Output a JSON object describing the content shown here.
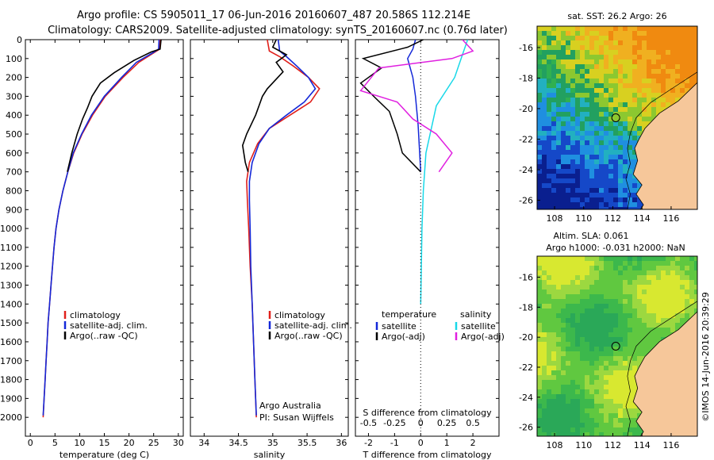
{
  "header": {
    "line1": "Argo profile: CS 5905011_17 06-Jun-2016 20160607_487 20.586S 112.214E",
    "line2": "Climatology: CARS2009. Satellite-adjusted climatology: synTS_20160607.nc (0.76d later)"
  },
  "colors": {
    "clim": "#e0201b",
    "sat": "#1428d8",
    "argo": "#000000",
    "cyan": "#18d8e8",
    "magenta": "#e020e0",
    "land": "#f6c79a"
  },
  "chart_data": [
    {
      "type": "line",
      "name": "temperature-panel",
      "xlabel": "temperature (deg C)",
      "xlim": [
        -1,
        31
      ],
      "ylim": [
        2100,
        0
      ],
      "xticks": [
        "0",
        "5",
        "10",
        "15",
        "20",
        "25",
        "30"
      ],
      "yticks": [
        "0",
        "100",
        "200",
        "300",
        "400",
        "500",
        "600",
        "700",
        "800",
        "900",
        "1000",
        "1100",
        "1200",
        "1300",
        "1400",
        "1500",
        "1600",
        "1700",
        "1800",
        "1900",
        "2000"
      ],
      "legend": [
        "climatology",
        "satellite-adj. clim.",
        "Argo(..raw -QC)"
      ],
      "series": [
        {
          "name": "climatology",
          "points": [
            [
              26.3,
              0
            ],
            [
              26.2,
              50
            ],
            [
              25,
              70
            ],
            [
              22,
              120
            ],
            [
              18.8,
              200
            ],
            [
              15.2,
              300
            ],
            [
              12.6,
              400
            ],
            [
              10.5,
              500
            ],
            [
              8.8,
              600
            ],
            [
              7.6,
              700
            ],
            [
              6.6,
              800
            ],
            [
              5.8,
              900
            ],
            [
              5.2,
              1000
            ],
            [
              4.8,
              1100
            ],
            [
              4.5,
              1200
            ],
            [
              4.2,
              1300
            ],
            [
              3.9,
              1400
            ],
            [
              3.6,
              1500
            ],
            [
              3.4,
              1600
            ],
            [
              3.2,
              1700
            ],
            [
              3.0,
              1800
            ],
            [
              2.8,
              1900
            ],
            [
              2.6,
              2000
            ]
          ]
        },
        {
          "name": "satellite-adj. clim.",
          "points": [
            [
              26.1,
              0
            ],
            [
              26.0,
              50
            ],
            [
              24.8,
              70
            ],
            [
              21.5,
              120
            ],
            [
              18.5,
              200
            ],
            [
              15.0,
              300
            ],
            [
              12.4,
              400
            ],
            [
              10.4,
              500
            ],
            [
              8.7,
              600
            ],
            [
              7.6,
              700
            ],
            [
              6.6,
              800
            ],
            [
              5.8,
              900
            ],
            [
              5.2,
              1000
            ],
            [
              4.8,
              1100
            ],
            [
              4.5,
              1200
            ],
            [
              4.2,
              1300
            ],
            [
              3.9,
              1400
            ],
            [
              3.6,
              1500
            ],
            [
              3.4,
              1600
            ],
            [
              3.2,
              1700
            ],
            [
              3.0,
              1800
            ],
            [
              2.8,
              1900
            ],
            [
              2.6,
              1990
            ]
          ]
        },
        {
          "name": "Argo(..raw -QC)",
          "points": [
            [
              26.5,
              0
            ],
            [
              26.3,
              50
            ],
            [
              24.5,
              65
            ],
            [
              21,
              110
            ],
            [
              17,
              175
            ],
            [
              14.2,
              230
            ],
            [
              12.5,
              300
            ],
            [
              11.6,
              360
            ],
            [
              10.6,
              420
            ],
            [
              9.5,
              500
            ],
            [
              8.4,
              600
            ],
            [
              7.5,
              700
            ]
          ]
        }
      ]
    },
    {
      "type": "line",
      "name": "salinity-panel",
      "xlabel": "salinity",
      "xlim": [
        33.8,
        36.1
      ],
      "ylim": [
        2100,
        0
      ],
      "xticks": [
        "34",
        "34.5",
        "35",
        "35.5",
        "36"
      ],
      "legend": [
        "climatology",
        "satellite-adj. clim.",
        "Argo(..raw -QC)"
      ],
      "annotation": [
        "Argo Australia",
        "PI: Susan Wijffels"
      ],
      "series": [
        {
          "name": "climatology",
          "points": [
            [
              34.92,
              0
            ],
            [
              34.95,
              60
            ],
            [
              35.1,
              90
            ],
            [
              35.3,
              140
            ],
            [
              35.52,
              200
            ],
            [
              35.68,
              260
            ],
            [
              35.55,
              330
            ],
            [
              35.25,
              400
            ],
            [
              34.95,
              470
            ],
            [
              34.78,
              550
            ],
            [
              34.66,
              650
            ],
            [
              34.62,
              750
            ],
            [
              34.63,
              850
            ],
            [
              34.65,
              1000
            ],
            [
              34.67,
              1200
            ],
            [
              34.7,
              1400
            ],
            [
              34.72,
              1600
            ],
            [
              34.74,
              1800
            ],
            [
              34.76,
              2000
            ]
          ]
        },
        {
          "name": "satellite-adj. clim.",
          "points": [
            [
              35.08,
              0
            ],
            [
              35.1,
              60
            ],
            [
              35.2,
              90
            ],
            [
              35.35,
              140
            ],
            [
              35.52,
              200
            ],
            [
              35.62,
              260
            ],
            [
              35.46,
              330
            ],
            [
              35.2,
              400
            ],
            [
              34.95,
              470
            ],
            [
              34.8,
              550
            ],
            [
              34.7,
              650
            ],
            [
              34.66,
              750
            ],
            [
              34.66,
              850
            ],
            [
              34.67,
              1000
            ],
            [
              34.68,
              1200
            ],
            [
              34.7,
              1400
            ],
            [
              34.72,
              1600
            ],
            [
              34.74,
              1800
            ],
            [
              34.76,
              1990
            ]
          ]
        },
        {
          "name": "Argo(..raw -QC)",
          "points": [
            [
              35.05,
              0
            ],
            [
              35.0,
              40
            ],
            [
              35.2,
              80
            ],
            [
              35.05,
              120
            ],
            [
              35.15,
              170
            ],
            [
              34.92,
              260
            ],
            [
              34.85,
              300
            ],
            [
              34.75,
              400
            ],
            [
              34.62,
              500
            ],
            [
              34.56,
              560
            ],
            [
              34.6,
              650
            ],
            [
              34.64,
              700
            ]
          ]
        }
      ]
    },
    {
      "type": "line",
      "name": "difference-panel",
      "xlabel": "T difference from climatology",
      "xlabel_top": "S difference from climatology",
      "xlim": [
        -2.5,
        3.0
      ],
      "ylim": [
        2100,
        0
      ],
      "xticks": [
        "-2",
        "-1",
        "0",
        "1",
        "2"
      ],
      "xticks_top": [
        "-0.5",
        "-0.25",
        "0",
        "0.25",
        "0.5"
      ],
      "legend": {
        "temperature": [
          "satellite",
          "Argo(-adj)"
        ],
        "salinity": [
          "satellite",
          "Argo(-adj)"
        ]
      },
      "series": [
        {
          "name": "T satellite",
          "points": [
            [
              -0.2,
              0
            ],
            [
              -0.3,
              50
            ],
            [
              -0.5,
              100
            ],
            [
              -0.3,
              200
            ],
            [
              -0.2,
              300
            ],
            [
              -0.1,
              450
            ],
            [
              0,
              700
            ]
          ]
        },
        {
          "name": "T Argo(-adj)",
          "points": [
            [
              0.1,
              0
            ],
            [
              -0.5,
              40
            ],
            [
              -2.2,
              100
            ],
            [
              -1.5,
              150
            ],
            [
              -2.3,
              230
            ],
            [
              -1.8,
              300
            ],
            [
              -1.2,
              380
            ],
            [
              -0.9,
              500
            ],
            [
              -0.7,
              600
            ],
            [
              0,
              700
            ]
          ]
        },
        {
          "name": "S satellite",
          "points": [
            [
              1.8,
              0
            ],
            [
              1.6,
              80
            ],
            [
              1.3,
              200
            ],
            [
              0.6,
              350
            ],
            [
              0.2,
              600
            ],
            [
              0.1,
              800
            ],
            [
              0.05,
              1000
            ],
            [
              0,
              1400
            ]
          ]
        },
        {
          "name": "S Argo(-adj)",
          "points": [
            [
              1.6,
              0
            ],
            [
              2.0,
              60
            ],
            [
              1.2,
              100
            ],
            [
              -1.6,
              150
            ],
            [
              -2.3,
              270
            ],
            [
              -0.9,
              330
            ],
            [
              -0.3,
              420
            ],
            [
              0.6,
              500
            ],
            [
              1.2,
              600
            ],
            [
              0.7,
              700
            ]
          ]
        }
      ]
    },
    {
      "type": "heatmap",
      "name": "sst-map",
      "title": "sat. SST: 26.2  Argo: 26",
      "xticks": [
        "108",
        "110",
        "112",
        "114",
        "116"
      ],
      "yticks": [
        "-16",
        "-18",
        "-20",
        "-22",
        "-24",
        "-26"
      ],
      "float_position": [
        112.2,
        -20.6
      ]
    },
    {
      "type": "heatmap",
      "name": "sla-map",
      "title": [
        "Altim. SLA: 0.061",
        "Argo h1000: -0.031 h2000: NaN"
      ],
      "xticks": [
        "108",
        "110",
        "112",
        "114",
        "116"
      ],
      "yticks": [
        "-16",
        "-18",
        "-20",
        "-22",
        "-24",
        "-26"
      ],
      "float_position": [
        112.2,
        -20.6
      ]
    }
  ],
  "footer": "©IMOS 14-Jun-2016 20:39:29"
}
